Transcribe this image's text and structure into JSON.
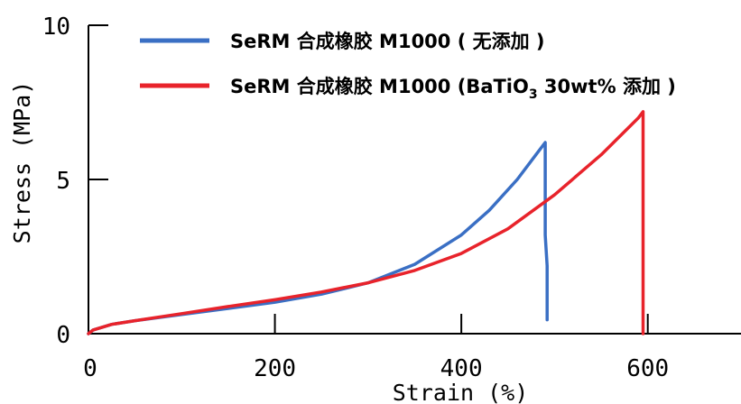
{
  "chart_data": {
    "type": "line",
    "xlabel": "Strain (%)",
    "ylabel": "Stress (MPa)",
    "xlim": [
      0,
      700
    ],
    "ylim": [
      0,
      10
    ],
    "x_ticks": [
      "0",
      "200",
      "400",
      "600"
    ],
    "y_ticks": [
      "0",
      "5",
      "10"
    ],
    "grid": false,
    "legend_position": "top",
    "series": [
      {
        "name": "SeRM 合成橡胶 M1000 ( 无添加 )",
        "color": "#3a6fc4",
        "x": [
          0,
          5,
          25,
          50,
          100,
          150,
          200,
          250,
          300,
          350,
          400,
          430,
          460,
          480,
          490,
          490,
          492,
          492
        ],
        "y": [
          0,
          0.12,
          0.3,
          0.42,
          0.62,
          0.82,
          1.02,
          1.28,
          1.65,
          2.25,
          3.2,
          4.0,
          5.0,
          5.8,
          6.2,
          3.2,
          2.2,
          0.45
        ]
      },
      {
        "name_prefix": "SeRM 合成橡胶 M1000 (BaTiO",
        "name_sub": "3",
        "name_suffix": " 30wt% 添加 )",
        "color": "#e8232b",
        "x": [
          0,
          5,
          25,
          50,
          100,
          150,
          200,
          250,
          300,
          350,
          400,
          450,
          500,
          550,
          590,
          595,
          595
        ],
        "y": [
          0,
          0.12,
          0.3,
          0.42,
          0.65,
          0.88,
          1.1,
          1.35,
          1.65,
          2.05,
          2.6,
          3.4,
          4.5,
          5.8,
          7.0,
          7.2,
          0
        ]
      }
    ]
  }
}
